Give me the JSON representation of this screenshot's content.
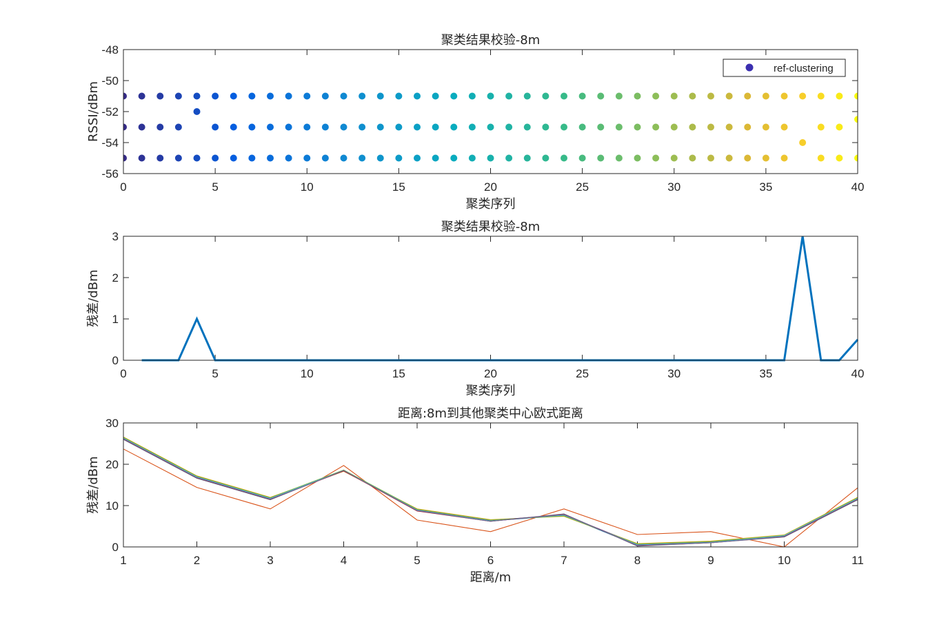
{
  "chart_data": [
    {
      "type": "scatter",
      "title": "聚类结果校验-8m",
      "xlabel": "聚类序列",
      "ylabel": "RSSI/dBm",
      "xlim": [
        0,
        40
      ],
      "ylim": [
        -56,
        -48
      ],
      "xticks": [
        0,
        5,
        10,
        15,
        20,
        25,
        30,
        35,
        40
      ],
      "yticks": [
        -56,
        -54,
        -52,
        -50,
        -48
      ],
      "legend": {
        "position": "top-right",
        "entries": [
          "ref-clustering"
        ]
      },
      "colormap": "parula (blue to yellow by x)",
      "legend_marker_color": "#3b2fb0",
      "series": [
        {
          "name": "ref-clustering",
          "points": [
            [
              0,
              -51
            ],
            [
              0,
              -53
            ],
            [
              0,
              -55
            ],
            [
              1,
              -51
            ],
            [
              1,
              -53
            ],
            [
              1,
              -55
            ],
            [
              2,
              -51
            ],
            [
              2,
              -53
            ],
            [
              2,
              -55
            ],
            [
              3,
              -51
            ],
            [
              3,
              -53
            ],
            [
              3,
              -55
            ],
            [
              4,
              -51
            ],
            [
              4,
              -52
            ],
            [
              4,
              -55
            ],
            [
              5,
              -51
            ],
            [
              5,
              -53
            ],
            [
              5,
              -55
            ],
            [
              6,
              -51
            ],
            [
              6,
              -53
            ],
            [
              6,
              -55
            ],
            [
              7,
              -51
            ],
            [
              7,
              -53
            ],
            [
              7,
              -55
            ],
            [
              8,
              -51
            ],
            [
              8,
              -53
            ],
            [
              8,
              -55
            ],
            [
              9,
              -51
            ],
            [
              9,
              -53
            ],
            [
              9,
              -55
            ],
            [
              10,
              -51
            ],
            [
              10,
              -53
            ],
            [
              10,
              -55
            ],
            [
              11,
              -51
            ],
            [
              11,
              -53
            ],
            [
              11,
              -55
            ],
            [
              12,
              -51
            ],
            [
              12,
              -53
            ],
            [
              12,
              -55
            ],
            [
              13,
              -51
            ],
            [
              13,
              -53
            ],
            [
              13,
              -55
            ],
            [
              14,
              -51
            ],
            [
              14,
              -53
            ],
            [
              14,
              -55
            ],
            [
              15,
              -51
            ],
            [
              15,
              -53
            ],
            [
              15,
              -55
            ],
            [
              16,
              -51
            ],
            [
              16,
              -53
            ],
            [
              16,
              -55
            ],
            [
              17,
              -51
            ],
            [
              17,
              -53
            ],
            [
              17,
              -55
            ],
            [
              18,
              -51
            ],
            [
              18,
              -53
            ],
            [
              18,
              -55
            ],
            [
              19,
              -51
            ],
            [
              19,
              -53
            ],
            [
              19,
              -55
            ],
            [
              20,
              -51
            ],
            [
              20,
              -53
            ],
            [
              20,
              -55
            ],
            [
              21,
              -51
            ],
            [
              21,
              -53
            ],
            [
              21,
              -55
            ],
            [
              22,
              -51
            ],
            [
              22,
              -53
            ],
            [
              22,
              -55
            ],
            [
              23,
              -51
            ],
            [
              23,
              -53
            ],
            [
              23,
              -55
            ],
            [
              24,
              -51
            ],
            [
              24,
              -53
            ],
            [
              24,
              -55
            ],
            [
              25,
              -51
            ],
            [
              25,
              -53
            ],
            [
              25,
              -55
            ],
            [
              26,
              -51
            ],
            [
              26,
              -53
            ],
            [
              26,
              -55
            ],
            [
              27,
              -51
            ],
            [
              27,
              -53
            ],
            [
              27,
              -55
            ],
            [
              28,
              -51
            ],
            [
              28,
              -53
            ],
            [
              28,
              -55
            ],
            [
              29,
              -51
            ],
            [
              29,
              -53
            ],
            [
              29,
              -55
            ],
            [
              30,
              -51
            ],
            [
              30,
              -53
            ],
            [
              30,
              -55
            ],
            [
              31,
              -51
            ],
            [
              31,
              -53
            ],
            [
              31,
              -55
            ],
            [
              32,
              -51
            ],
            [
              32,
              -53
            ],
            [
              32,
              -55
            ],
            [
              33,
              -51
            ],
            [
              33,
              -53
            ],
            [
              33,
              -55
            ],
            [
              34,
              -51
            ],
            [
              34,
              -53
            ],
            [
              34,
              -55
            ],
            [
              35,
              -51
            ],
            [
              35,
              -53
            ],
            [
              35,
              -55
            ],
            [
              36,
              -51
            ],
            [
              36,
              -53
            ],
            [
              36,
              -55
            ],
            [
              37,
              -51
            ],
            [
              37,
              -54
            ],
            [
              38,
              -51
            ],
            [
              38,
              -53
            ],
            [
              38,
              -55
            ],
            [
              39,
              -51
            ],
            [
              39,
              -53
            ],
            [
              39,
              -55
            ],
            [
              40,
              -51
            ],
            [
              40,
              -52.5
            ],
            [
              40,
              -55
            ]
          ]
        }
      ]
    },
    {
      "type": "line",
      "title": "聚类结果校验-8m",
      "xlabel": "聚类序列",
      "ylabel": "残差/dBm",
      "xlim": [
        0,
        40
      ],
      "ylim": [
        0,
        3
      ],
      "xticks": [
        0,
        5,
        10,
        15,
        20,
        25,
        30,
        35,
        40
      ],
      "yticks": [
        0,
        1,
        2,
        3
      ],
      "series": [
        {
          "color": "#0072bd",
          "x": [
            1,
            2,
            3,
            4,
            5,
            6,
            7,
            8,
            9,
            10,
            11,
            12,
            13,
            14,
            15,
            16,
            17,
            18,
            19,
            20,
            21,
            22,
            23,
            24,
            25,
            26,
            27,
            28,
            29,
            30,
            31,
            32,
            33,
            34,
            35,
            36,
            37,
            38,
            39,
            40
          ],
          "y": [
            0,
            0,
            0,
            1,
            0,
            0,
            0,
            0,
            0,
            0,
            0,
            0,
            0,
            0,
            0,
            0,
            0,
            0,
            0,
            0,
            0,
            0,
            0,
            0,
            0,
            0,
            0,
            0,
            0,
            0,
            0,
            0,
            0,
            0,
            0,
            0,
            3,
            0,
            0,
            0.5
          ]
        }
      ]
    },
    {
      "type": "line",
      "title": "距离:8m到其他聚类中心欧式距离",
      "xlabel": "距离/m",
      "ylabel": "残差/dBm",
      "xlim": [
        1,
        11
      ],
      "ylim": [
        0,
        30
      ],
      "xticks": [
        1,
        2,
        3,
        4,
        5,
        6,
        7,
        8,
        9,
        10,
        11
      ],
      "yticks": [
        0,
        10,
        20,
        30
      ],
      "x": [
        1,
        2,
        3,
        4,
        5,
        6,
        7,
        8,
        9,
        10,
        11
      ],
      "series": [
        {
          "color": "#0072bd",
          "y": [
            26.2,
            16.8,
            11.6,
            18.5,
            8.8,
            6.3,
            7.6,
            0.4,
            1.1,
            2.6,
            11.6
          ]
        },
        {
          "color": "#d95319",
          "y": [
            23.7,
            14.4,
            9.2,
            19.7,
            6.5,
            3.7,
            9.2,
            3.0,
            3.7,
            0.0,
            14.3
          ]
        },
        {
          "color": "#edb120",
          "y": [
            26.6,
            17.2,
            12.0,
            18.3,
            9.2,
            6.6,
            7.4,
            0.8,
            1.4,
            2.9,
            12.0
          ]
        },
        {
          "color": "#7e2f8e",
          "y": [
            26.4,
            17.0,
            11.8,
            18.4,
            9.0,
            6.4,
            7.8,
            0.6,
            1.2,
            2.7,
            11.8
          ]
        },
        {
          "color": "#77ac30",
          "y": [
            26.5,
            17.1,
            11.9,
            18.6,
            9.1,
            6.5,
            7.5,
            0.7,
            1.3,
            2.8,
            11.9
          ]
        },
        {
          "color": "#4dbeee",
          "y": [
            26.3,
            16.9,
            11.7,
            18.5,
            8.9,
            6.3,
            7.7,
            0.5,
            1.1,
            2.7,
            11.7
          ]
        },
        {
          "color": "#a2142f",
          "y": [
            26.1,
            16.7,
            11.5,
            18.4,
            8.7,
            6.2,
            7.9,
            0.3,
            1.0,
            2.5,
            11.5
          ]
        },
        {
          "color": "#6c6c8c",
          "y": [
            26.0,
            16.6,
            11.4,
            18.5,
            8.8,
            6.2,
            8.0,
            0.2,
            1.0,
            2.4,
            11.4
          ]
        }
      ]
    }
  ]
}
